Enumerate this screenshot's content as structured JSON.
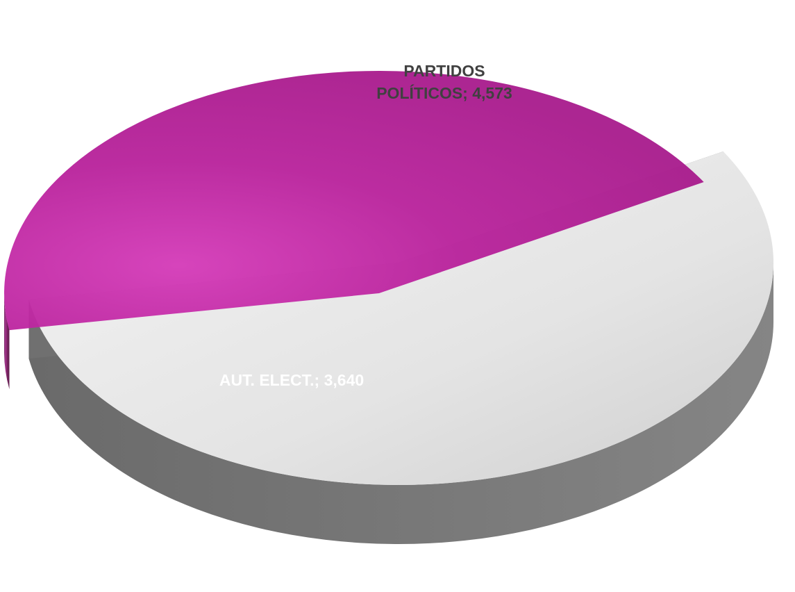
{
  "chart_data": {
    "type": "pie",
    "variant": "3d-exploded",
    "slices": [
      {
        "category": "PARTIDOS POLÍTICOS",
        "label_lines": [
          "PARTIDOS",
          "POLÍTICOS; 4,573"
        ],
        "value": 4573,
        "color": "#e6e6e6",
        "side_color": "#707070",
        "label_color": "#404040"
      },
      {
        "category": "AUT. ELECT.",
        "label_lines": [
          "AUT. ELECT.; 3,640"
        ],
        "value": 3640,
        "color": "#b8219b",
        "side_color": "#7a1f62",
        "label_color": "#ffffff"
      }
    ],
    "legend": "none"
  }
}
